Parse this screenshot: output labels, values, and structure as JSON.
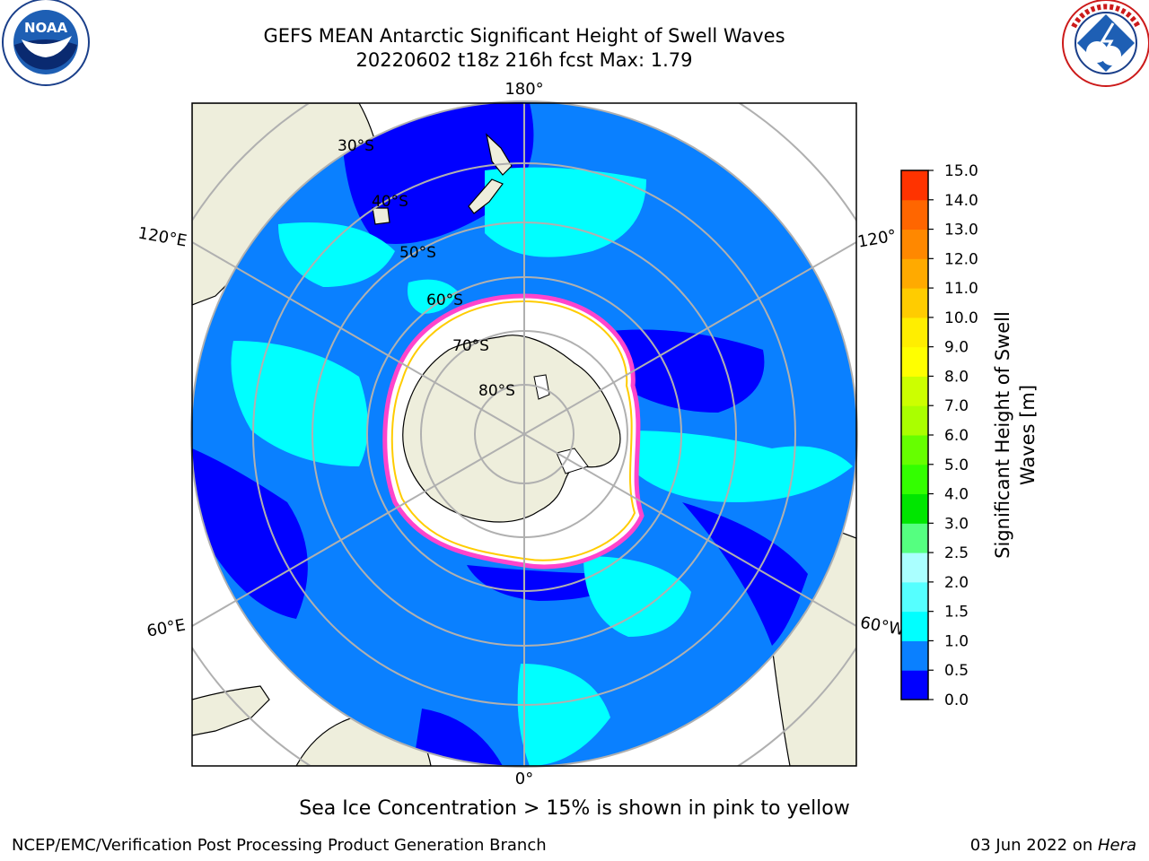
{
  "header": {
    "title_line1": "GEFS MEAN Antarctic Significant Height of Swell Waves",
    "title_line2": "20220602 t18z 216h fcst   Max: 1.79"
  },
  "logos": {
    "left": {
      "name": "noaa-logo",
      "text": "NOAA",
      "ring_text": "NATIONAL OCEANIC AND ATMOSPHERIC ADMINISTRATION · U.S. DEPARTMENT OF COMMERCE"
    },
    "right": {
      "name": "nws-logo",
      "ring_text": "NATIONAL WEATHER SERVICE"
    }
  },
  "map": {
    "projection": "south-polar-stereographic",
    "longitude_labels": {
      "top": "180°",
      "bottom": "0°",
      "left_upper": "120°E",
      "right_upper": "120°",
      "left_lower": "60°E",
      "right_lower": "60°W"
    },
    "latitude_labels": [
      "30°S",
      "40°S",
      "50°S",
      "60°S",
      "70°S",
      "80°S"
    ],
    "colors": {
      "land": "#eeeedc",
      "open_ocean": "#0a80ff",
      "low_band": "#0000ff",
      "swell_1_1_5": "#00ffff",
      "sea_ice": "#ffffff",
      "grid": "#b0b0b0"
    }
  },
  "colorbar": {
    "label_line1": "Significant Height of Swell",
    "label_line2": "Waves [m]",
    "ticks": [
      "0.0",
      "0.5",
      "1.0",
      "1.5",
      "2.0",
      "2.5",
      "3.0",
      "4.0",
      "5.0",
      "6.0",
      "7.0",
      "8.0",
      "9.0",
      "10.0",
      "11.0",
      "12.0",
      "13.0",
      "14.0",
      "15.0"
    ],
    "colors": [
      "#0000ff",
      "#0a80ff",
      "#00ffff",
      "#55ffff",
      "#aaffff",
      "#55ff80",
      "#00e600",
      "#33ff00",
      "#66ff00",
      "#aaff00",
      "#ccff00",
      "#ffff00",
      "#ffee00",
      "#ffcc00",
      "#ffaa00",
      "#ff8800",
      "#ff6600",
      "#ff3300",
      "#ff0000"
    ]
  },
  "caption": "Sea Ice Concentration > 15% is shown in pink to yellow",
  "footer": {
    "left": "NCEP/EMC/Verification Post Processing Product Generation Branch",
    "right_prefix": "03 Jun 2022 on ",
    "right_machine": "Hera"
  }
}
